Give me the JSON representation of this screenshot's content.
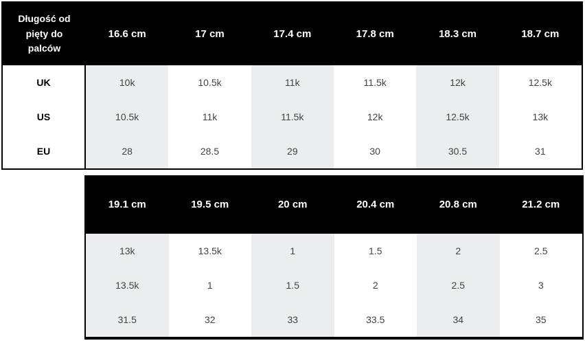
{
  "colors": {
    "header_bg": "#000000",
    "header_text": "#ffffff",
    "shaded_column": "#ebedee",
    "plain_column": "#ffffff",
    "cell_text": "#3e4449",
    "row_label_text": "#000000",
    "border": "#000000"
  },
  "chart_data": [
    {
      "type": "table",
      "corner_label": "Długość od pięty do palców",
      "columns": [
        "16.6 cm",
        "17 cm",
        "17.4 cm",
        "17.8 cm",
        "18.3 cm",
        "18.7 cm"
      ],
      "rows": [
        {
          "label": "UK",
          "values": [
            "10k",
            "10.5k",
            "11k",
            "11.5k",
            "12k",
            "12.5k"
          ]
        },
        {
          "label": "US",
          "values": [
            "10.5k",
            "11k",
            "11.5k",
            "12k",
            "12.5k",
            "13k"
          ]
        },
        {
          "label": "EU",
          "values": [
            "28",
            "28.5",
            "29",
            "30",
            "30.5",
            "31"
          ]
        }
      ],
      "layout": {
        "shaded_columns": [
          0,
          2,
          4
        ],
        "header_position": "top"
      }
    },
    {
      "type": "table",
      "columns": [
        "19.1 cm",
        "19.5 cm",
        "20 cm",
        "20.4 cm",
        "20.8 cm",
        "21.2 cm"
      ],
      "rows": [
        {
          "values": [
            "13k",
            "13.5k",
            "1",
            "1.5",
            "2",
            "2.5"
          ]
        },
        {
          "values": [
            "13.5k",
            "1",
            "1.5",
            "2",
            "2.5",
            "3"
          ]
        },
        {
          "values": [
            "31.5",
            "32",
            "33",
            "33.5",
            "34",
            "35"
          ]
        }
      ],
      "layout": {
        "shaded_columns": [
          0,
          2,
          4
        ],
        "header_position": "top"
      }
    }
  ]
}
